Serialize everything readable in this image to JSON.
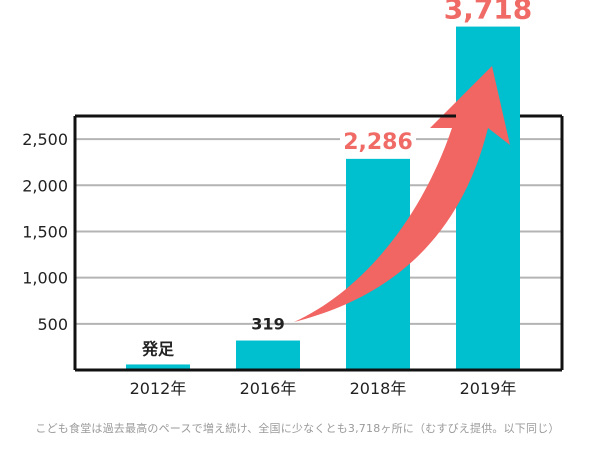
{
  "chart_data": {
    "type": "bar",
    "categories": [
      "2012年",
      "2016年",
      "2018年",
      "2019年"
    ],
    "values": [
      60,
      319,
      2286,
      3718
    ],
    "data_labels": [
      "発足",
      "319",
      "2,286",
      "3,718"
    ],
    "y_ticks": [
      500,
      1000,
      1500,
      2000,
      2500
    ],
    "y_tick_labels": [
      "500",
      "1,000",
      "1,500",
      "2,000",
      "2,500"
    ],
    "ylim": [
      0,
      2750
    ],
    "grid": true,
    "title": "",
    "xlabel": "",
    "ylabel": ""
  },
  "caption": "こども食堂は過去最高のペースで増え続け、全国に少なくとも3,718ヶ所に（むすびえ提供。以下同じ）",
  "colors": {
    "bar": "#00bfcf",
    "arrow": "#f16562",
    "highlight_label": "#f06a66",
    "grid": "#b4b4b4",
    "frame": "#111111",
    "caption": "#9a9a9a"
  }
}
